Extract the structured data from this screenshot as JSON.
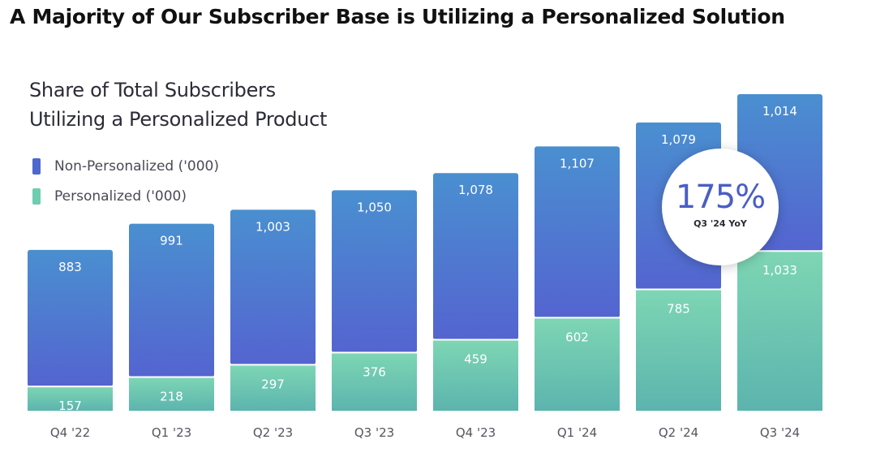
{
  "page_title": "A Majority of Our Subscriber Base is Utilizing a Personalized Solution",
  "chart_data": {
    "type": "bar",
    "stacked": true,
    "title_lines": [
      "Share of Total Subscribers",
      "Utilizing a Personalized Product"
    ],
    "categories": [
      "Q4 '22",
      "Q1 '23",
      "Q2 '23",
      "Q3 '23",
      "Q4 '23",
      "Q1 '24",
      "Q2 '24",
      "Q3 '24"
    ],
    "series": [
      {
        "name": "Personalized ('000)",
        "values": [
          157,
          218,
          297,
          376,
          459,
          602,
          785,
          1033
        ],
        "color": "#6ec7b1"
      },
      {
        "name": "Non-Personalized ('000)",
        "values": [
          883,
          991,
          1003,
          1050,
          1078,
          1107,
          1079,
          1014
        ],
        "color": "#4f63cf"
      }
    ],
    "legend": {
      "placement": "top-left",
      "order": [
        "Non-Personalized ('000)",
        "Personalized ('000)"
      ]
    },
    "grid": false,
    "annotation": {
      "value": "175%",
      "label": "Q3 '24 YoY"
    }
  },
  "colors": {
    "non_personalized_top": "#4a8fd0",
    "non_personalized_bottom": "#5464d0",
    "personalized_top": "#7ed6b4",
    "personalized_bottom": "#5cb4ae",
    "legend_non_personalized": "#4d67cf",
    "legend_personalized": "#6ecdb0"
  }
}
